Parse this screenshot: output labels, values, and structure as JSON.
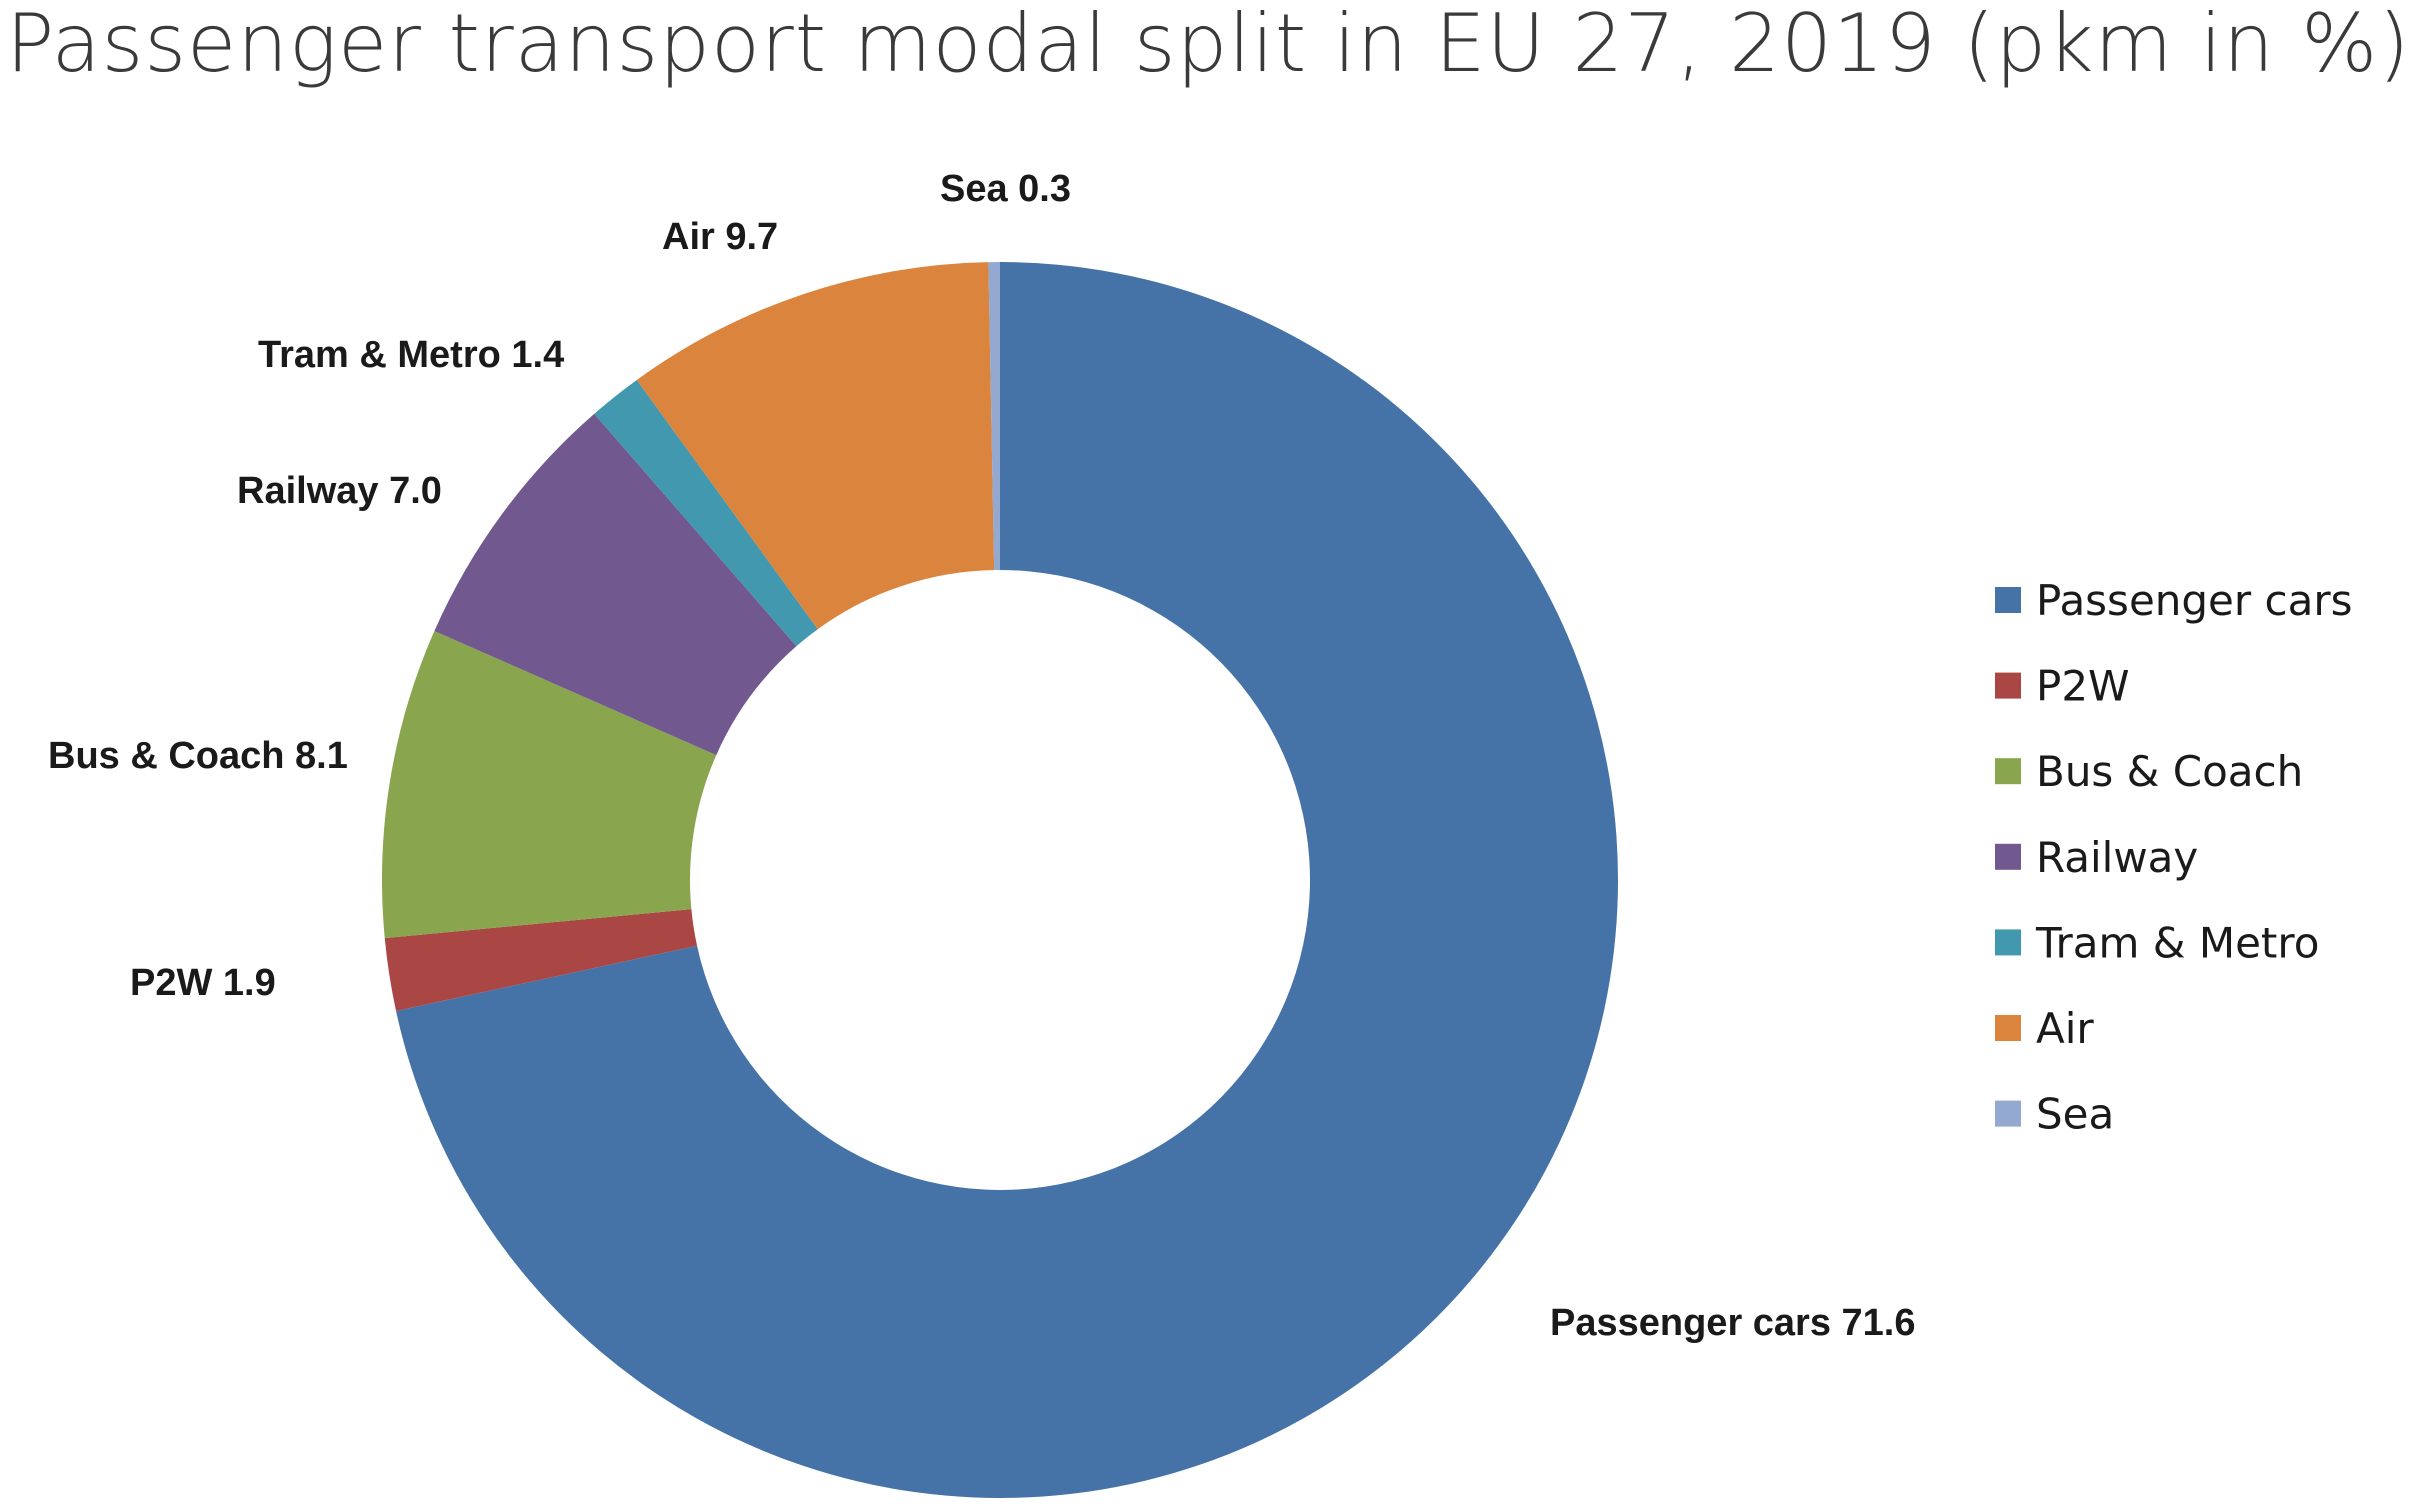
{
  "chart_data": {
    "type": "pie",
    "variant": "donut",
    "title": "Passenger transport modal split in EU 27, 2019 (pkm in %)",
    "legend_position": "right",
    "slices": [
      {
        "name": "Passenger cars",
        "value": 71.6,
        "label": "Passenger cars 71.6",
        "color": "#4573A7"
      },
      {
        "name": "P2W",
        "value": 1.9,
        "label": "P2W 1.9",
        "color": "#AA4644"
      },
      {
        "name": "Bus & Coach",
        "value": 8.1,
        "label": "Bus & Coach 8.1",
        "color": "#89A54E"
      },
      {
        "name": "Railway",
        "value": 7.0,
        "label": "Railway 7.0",
        "color": "#71588F"
      },
      {
        "name": "Tram & Metro",
        "value": 1.4,
        "label": "Tram & Metro 1.4",
        "color": "#4198AF"
      },
      {
        "name": "Air",
        "value": 9.7,
        "label": "Air 9.7",
        "color": "#DB843D"
      },
      {
        "name": "Sea",
        "value": 0.3,
        "label": "Sea 0.3",
        "color": "#93A9CF"
      }
    ]
  }
}
